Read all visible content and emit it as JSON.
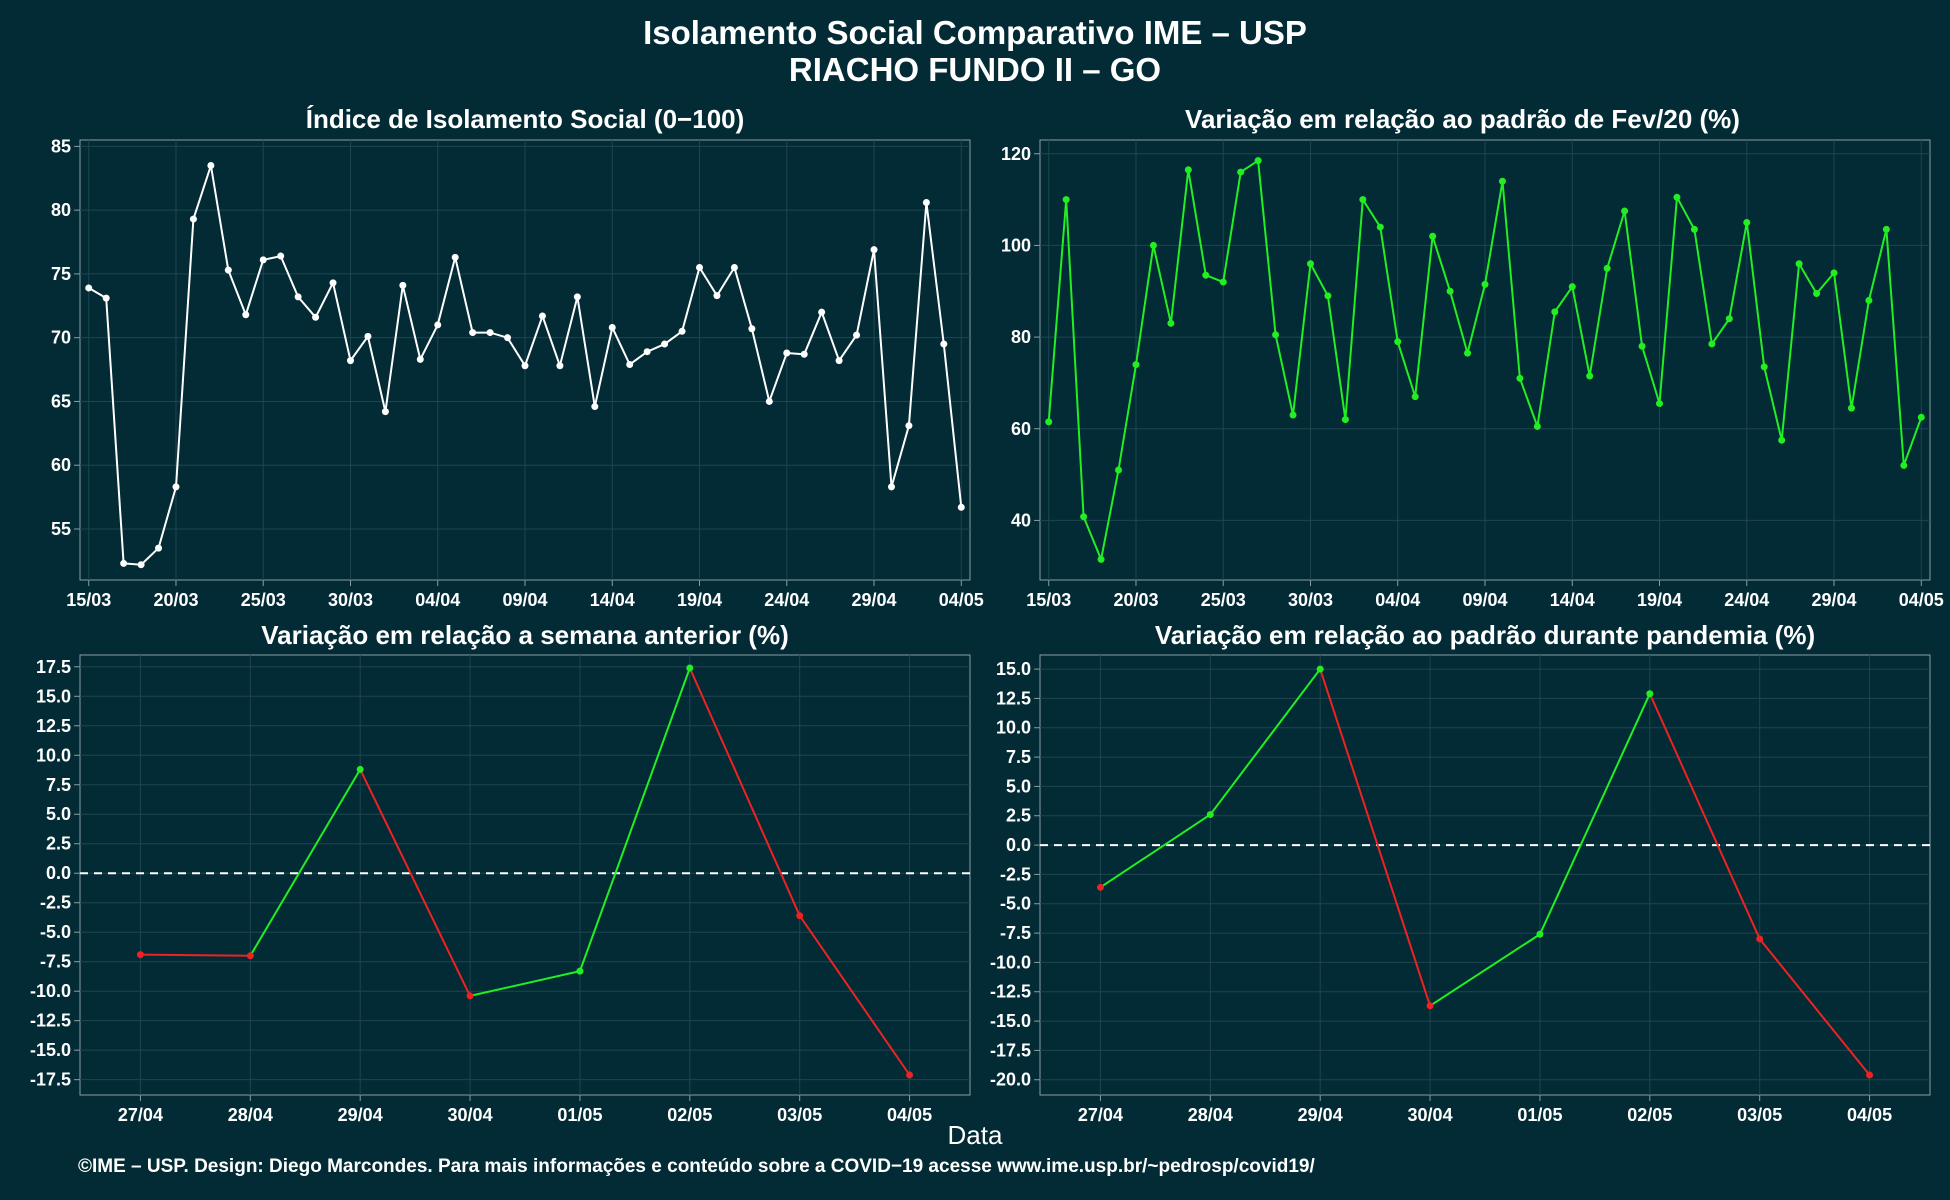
{
  "title_line1": "Isolamento Social Comparativo IME – USP",
  "title_line2": "RIACHO FUNDO II – GO",
  "x_axis_title": "Data",
  "footer": "©IME – USP. Design: Diego Marcondes. Para mais informações e conteúdo sobre a COVID−19 acesse www.ime.usp.br/~pedrosp/covid19/",
  "colors": {
    "background": "#022b35",
    "white_series": "#ffffff",
    "green_series": "#22ee22",
    "red_series": "#ee2222",
    "grid": "#1f4650",
    "axis": "#8a9ea3"
  },
  "chart_data": [
    {
      "id": "index",
      "type": "line",
      "title": "Índice de Isolamento Social (0−100)",
      "xlabel": "",
      "ylabel": "",
      "x_start": "15/03",
      "x_end": "04/05",
      "x_tick_labels": [
        "15/03",
        "20/03",
        "25/03",
        "30/03",
        "04/04",
        "09/04",
        "14/04",
        "19/04",
        "24/04",
        "29/04",
        "04/05"
      ],
      "y_ticks": [
        55,
        60,
        65,
        70,
        75,
        80,
        85
      ],
      "ylim": [
        51,
        85.5
      ],
      "color": "#ffffff",
      "values": [
        73.9,
        73.1,
        52.3,
        52.2,
        53.5,
        58.3,
        79.3,
        83.5,
        75.3,
        71.8,
        76.1,
        76.4,
        73.2,
        71.6,
        74.3,
        68.2,
        70.1,
        64.2,
        74.1,
        68.3,
        71.0,
        76.3,
        70.4,
        70.4,
        70.0,
        67.8,
        71.7,
        67.8,
        73.2,
        64.6,
        70.8,
        67.9,
        68.9,
        69.5,
        70.5,
        75.5,
        73.3,
        75.5,
        70.7,
        65.0,
        68.8,
        68.7,
        72.0,
        68.2,
        70.2,
        76.9,
        58.3,
        63.1,
        80.6,
        69.5,
        56.7
      ]
    },
    {
      "id": "fev",
      "type": "line",
      "title": "Variação em relação ao padrão de Fev/20 (%)",
      "xlabel": "",
      "ylabel": "",
      "x_start": "15/03",
      "x_end": "04/05",
      "x_tick_labels": [
        "15/03",
        "20/03",
        "25/03",
        "30/03",
        "04/04",
        "09/04",
        "14/04",
        "19/04",
        "24/04",
        "29/04",
        "04/05"
      ],
      "y_ticks": [
        40,
        60,
        80,
        100,
        120
      ],
      "ylim": [
        27,
        123
      ],
      "color": "#22ee22",
      "values": [
        61.5,
        110.0,
        40.8,
        31.5,
        51.0,
        74.0,
        100.0,
        83.0,
        116.5,
        93.5,
        92.0,
        116.0,
        118.5,
        80.5,
        63.0,
        96.0,
        89.0,
        62.0,
        110.0,
        104.0,
        79.0,
        67.0,
        102.0,
        90.0,
        76.5,
        91.5,
        114.0,
        71.0,
        60.5,
        85.5,
        91.0,
        71.5,
        95.0,
        107.5,
        78.0,
        65.5,
        110.5,
        103.5,
        78.5,
        84.0,
        105.0,
        73.5,
        57.5,
        96.0,
        89.5,
        94.0,
        64.5,
        88.0,
        103.5,
        52.0,
        62.5
      ]
    },
    {
      "id": "semana",
      "type": "line",
      "title": "Variação em relação a semana anterior (%)",
      "xlabel": "Data",
      "ylabel": "",
      "categories": [
        "27/04",
        "28/04",
        "29/04",
        "30/04",
        "01/05",
        "02/05",
        "03/05",
        "04/05"
      ],
      "values": [
        -6.9,
        -7.0,
        8.8,
        -10.4,
        -8.3,
        17.4,
        -3.6,
        -17.1
      ],
      "y_ticks": [
        -17.5,
        -15.0,
        -12.5,
        -10.0,
        -7.5,
        -5.0,
        -2.5,
        0.0,
        2.5,
        5.0,
        7.5,
        10.0,
        12.5,
        15.0,
        17.5
      ],
      "ylim": [
        -18.8,
        18.5
      ],
      "reference_line": 0,
      "positive_color": "#22ee22",
      "negative_color": "#ee2222"
    },
    {
      "id": "pandemia",
      "type": "line",
      "title": "Variação em relação ao padrão durante pandemia (%)",
      "xlabel": "Data",
      "ylabel": "",
      "categories": [
        "27/04",
        "28/04",
        "29/04",
        "30/04",
        "01/05",
        "02/05",
        "03/05",
        "04/05"
      ],
      "values": [
        -3.6,
        2.6,
        15.0,
        -13.7,
        -7.6,
        12.9,
        -8.0,
        -19.6
      ],
      "y_ticks": [
        -20.0,
        -17.5,
        -15.0,
        -12.5,
        -10.0,
        -7.5,
        -5.0,
        -2.5,
        0.0,
        2.5,
        5.0,
        7.5,
        10.0,
        12.5,
        15.0
      ],
      "ylim": [
        -21.3,
        16.2
      ],
      "reference_line": 0,
      "positive_color": "#22ee22",
      "negative_color": "#ee2222"
    }
  ]
}
